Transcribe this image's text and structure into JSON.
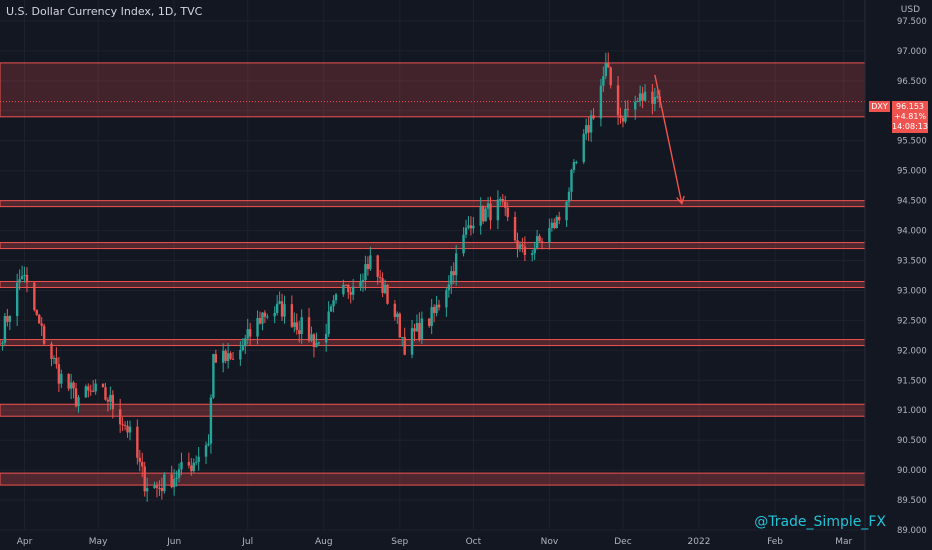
{
  "header": {
    "title": "U.S. Dollar Currency Index, 1D, TVC",
    "currency": "USD"
  },
  "price_tag": {
    "symbol": "DXY",
    "price": "96.153",
    "change": "+4.81%",
    "countdown": "14:08:13"
  },
  "watermark": "@Trade_Simple_FX",
  "colors": {
    "background": "#131722",
    "up": "#26a69a",
    "down": "#ef5350",
    "zone": "#ef5350",
    "arrow": "#f0544c",
    "watermark": "#22c3d8"
  },
  "chart_data": {
    "type": "candlestick",
    "ylim": [
      89.0,
      97.7
    ],
    "yticks": [
      "89.000",
      "89.500",
      "90.000",
      "90.500",
      "91.000",
      "91.500",
      "92.000",
      "92.500",
      "93.000",
      "93.500",
      "94.000",
      "94.500",
      "95.000",
      "95.500",
      "96.000",
      "96.500",
      "97.000",
      "97.500"
    ],
    "xticks": [
      "Apr",
      "May",
      "Jun",
      "Jul",
      "Aug",
      "Sep",
      "Oct",
      "Nov",
      "Dec",
      "2022",
      "Feb",
      "Mar"
    ],
    "zones": [
      {
        "low": 95.9,
        "high": 96.8
      },
      {
        "low": 94.4,
        "high": 94.5
      },
      {
        "low": 93.7,
        "high": 93.8
      },
      {
        "low": 93.05,
        "high": 93.15
      },
      {
        "low": 92.08,
        "high": 92.18
      },
      {
        "low": 90.9,
        "high": 91.1
      },
      {
        "low": 89.75,
        "high": 89.95
      }
    ],
    "anchors": [
      {
        "date": "2021-03-23",
        "close": 92.3
      },
      {
        "date": "2021-03-31",
        "close": 93.3
      },
      {
        "date": "2021-04-07",
        "close": 92.4
      },
      {
        "date": "2021-04-15",
        "close": 91.6
      },
      {
        "date": "2021-04-22",
        "close": 91.2
      },
      {
        "date": "2021-04-30",
        "close": 91.3
      },
      {
        "date": "2021-05-05",
        "close": 91.2
      },
      {
        "date": "2021-05-13",
        "close": 90.7
      },
      {
        "date": "2021-05-20",
        "close": 89.8
      },
      {
        "date": "2021-05-25",
        "close": 89.7
      },
      {
        "date": "2021-06-01",
        "close": 89.9
      },
      {
        "date": "2021-06-08",
        "close": 90.1
      },
      {
        "date": "2021-06-15",
        "close": 90.5
      },
      {
        "date": "2021-06-17",
        "close": 91.9
      },
      {
        "date": "2021-06-25",
        "close": 91.8
      },
      {
        "date": "2021-07-07",
        "close": 92.6
      },
      {
        "date": "2021-07-15",
        "close": 92.7
      },
      {
        "date": "2021-07-30",
        "close": 92.1
      },
      {
        "date": "2021-08-06",
        "close": 92.8
      },
      {
        "date": "2021-08-20",
        "close": 93.5
      },
      {
        "date": "2021-08-30",
        "close": 92.6
      },
      {
        "date": "2021-09-03",
        "close": 92.1
      },
      {
        "date": "2021-09-15",
        "close": 92.6
      },
      {
        "date": "2021-09-22",
        "close": 93.3
      },
      {
        "date": "2021-09-30",
        "close": 94.2
      },
      {
        "date": "2021-10-12",
        "close": 94.4
      },
      {
        "date": "2021-10-21",
        "close": 93.6
      },
      {
        "date": "2021-10-28",
        "close": 93.8
      },
      {
        "date": "2021-11-05",
        "close": 94.2
      },
      {
        "date": "2021-11-12",
        "close": 95.1
      },
      {
        "date": "2021-11-19",
        "close": 96.0
      },
      {
        "date": "2021-11-24",
        "close": 96.7
      },
      {
        "date": "2021-11-30",
        "close": 95.9
      },
      {
        "date": "2021-12-08",
        "close": 96.2
      },
      {
        "date": "2021-12-14",
        "close": 96.3
      },
      {
        "date": "2021-12-16",
        "close": 96.15
      }
    ],
    "projection": [
      {
        "date": "2021-12-14",
        "y": 96.6
      },
      {
        "date": "2021-12-25",
        "y": 94.45
      }
    ],
    "last_price": 96.153
  }
}
